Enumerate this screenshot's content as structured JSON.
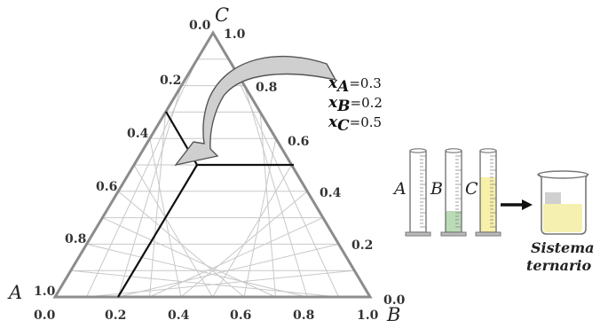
{
  "diagram": {
    "vertices": {
      "A": "A",
      "B": "B",
      "C": "C"
    },
    "axis_ticks": {
      "bottom": [
        "0.0",
        "0.2",
        "0.4",
        "0.6",
        "0.8",
        "1.0"
      ],
      "left": [
        "0.2",
        "0.4",
        "0.6",
        "0.8",
        "1.0"
      ],
      "right": [
        "1.0",
        "0.8",
        "0.6",
        "0.4",
        "0.2",
        "0.0"
      ],
      "top_left": "0.0"
    },
    "composition": {
      "point": {
        "xA": 0.3,
        "xB": 0.2,
        "xC": 0.5
      },
      "lines": [
        {
          "var": "x",
          "sub": "A",
          "rest": "=0.3"
        },
        {
          "var": "x",
          "sub": "B",
          "rest": "=0.2"
        },
        {
          "var": "x",
          "sub": "C",
          "rest": "=0.5"
        }
      ]
    },
    "cylinders": [
      "A",
      "B",
      "C"
    ],
    "caption": [
      "Sistema",
      "ternario"
    ],
    "colors": {
      "triangle": "#8c8c8c",
      "grid": "#c8c8c8",
      "lines": "#111111",
      "arrow_fill": "#cfcfcf",
      "liquid_B": "#b9dbb5",
      "liquid_C": "#f6f0a8",
      "beaker_liquid": "#f6f0b0"
    }
  }
}
